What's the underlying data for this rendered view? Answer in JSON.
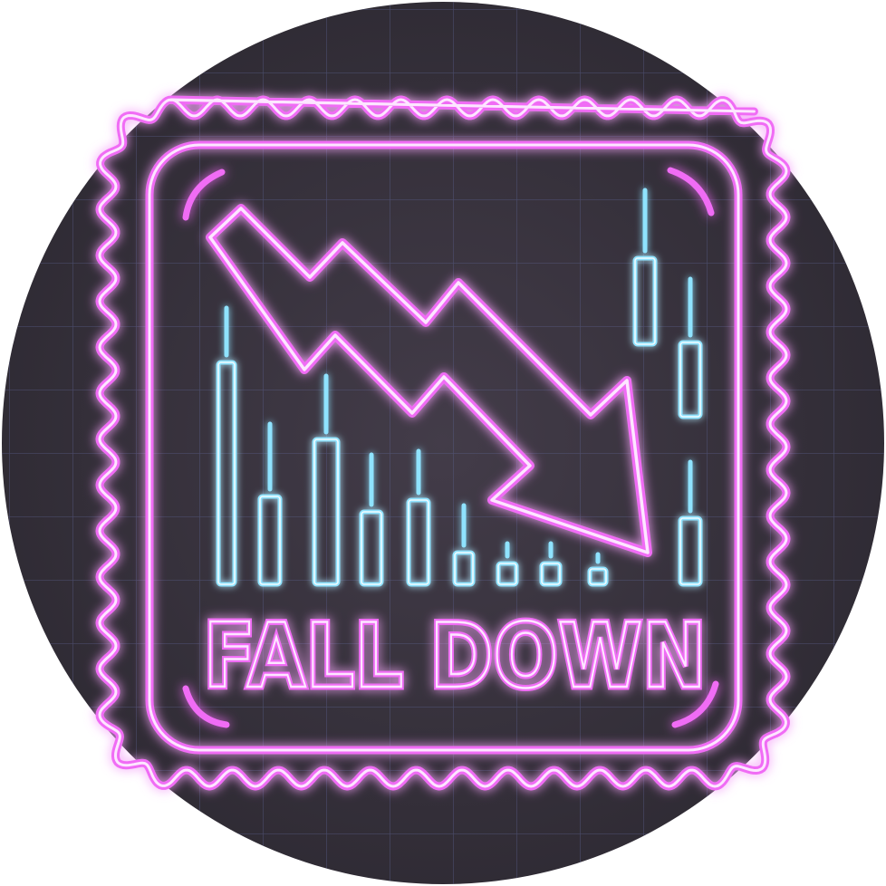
{
  "badge": {
    "label": "FALL DOWN",
    "icon": "downward-trend-arrow-icon",
    "theme": {
      "background": "#3a3540",
      "grid": "#5a6090",
      "neon_pink": "#f06cf5",
      "neon_pink_core": "#fde6ff",
      "neon_cyan": "#8fe3ff",
      "neon_cyan_core": "#f0fbff"
    }
  }
}
